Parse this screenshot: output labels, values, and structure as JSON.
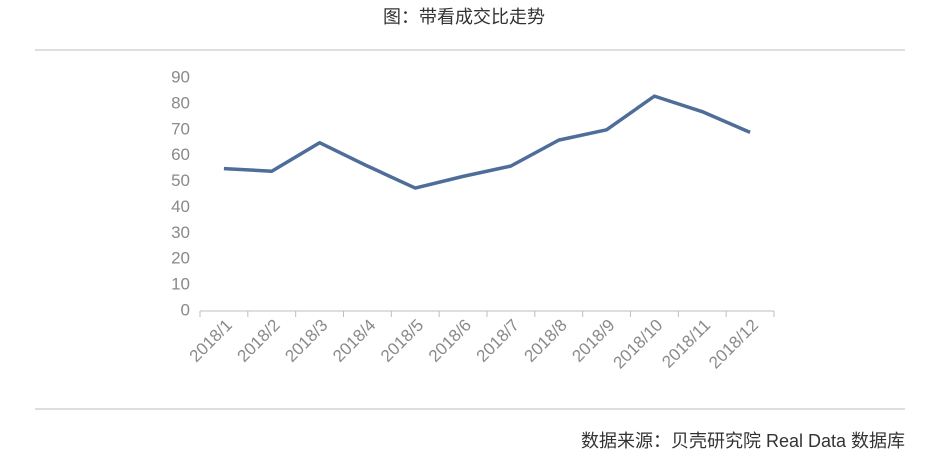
{
  "chart_data": {
    "type": "line",
    "title": "图：带看成交比走势",
    "categories": [
      "2018/1",
      "2018/2",
      "2018/3",
      "2018/4",
      "2018/5",
      "2018/6",
      "2018/7",
      "2018/8",
      "2018/9",
      "2018/10",
      "2018/11",
      "2018/12"
    ],
    "series": [
      {
        "name": "带看成交比",
        "color": "#4e6d99",
        "values": [
          55,
          54,
          65,
          56,
          47.5,
          52,
          56,
          66,
          70,
          83,
          77,
          69
        ]
      }
    ],
    "ylim": [
      0,
      90
    ],
    "yticks": [
      0,
      10,
      20,
      30,
      40,
      50,
      60,
      70,
      80,
      90
    ],
    "grid": false,
    "legend": false,
    "source": "数据来源：贝壳研究院 Real Data 数据库"
  }
}
